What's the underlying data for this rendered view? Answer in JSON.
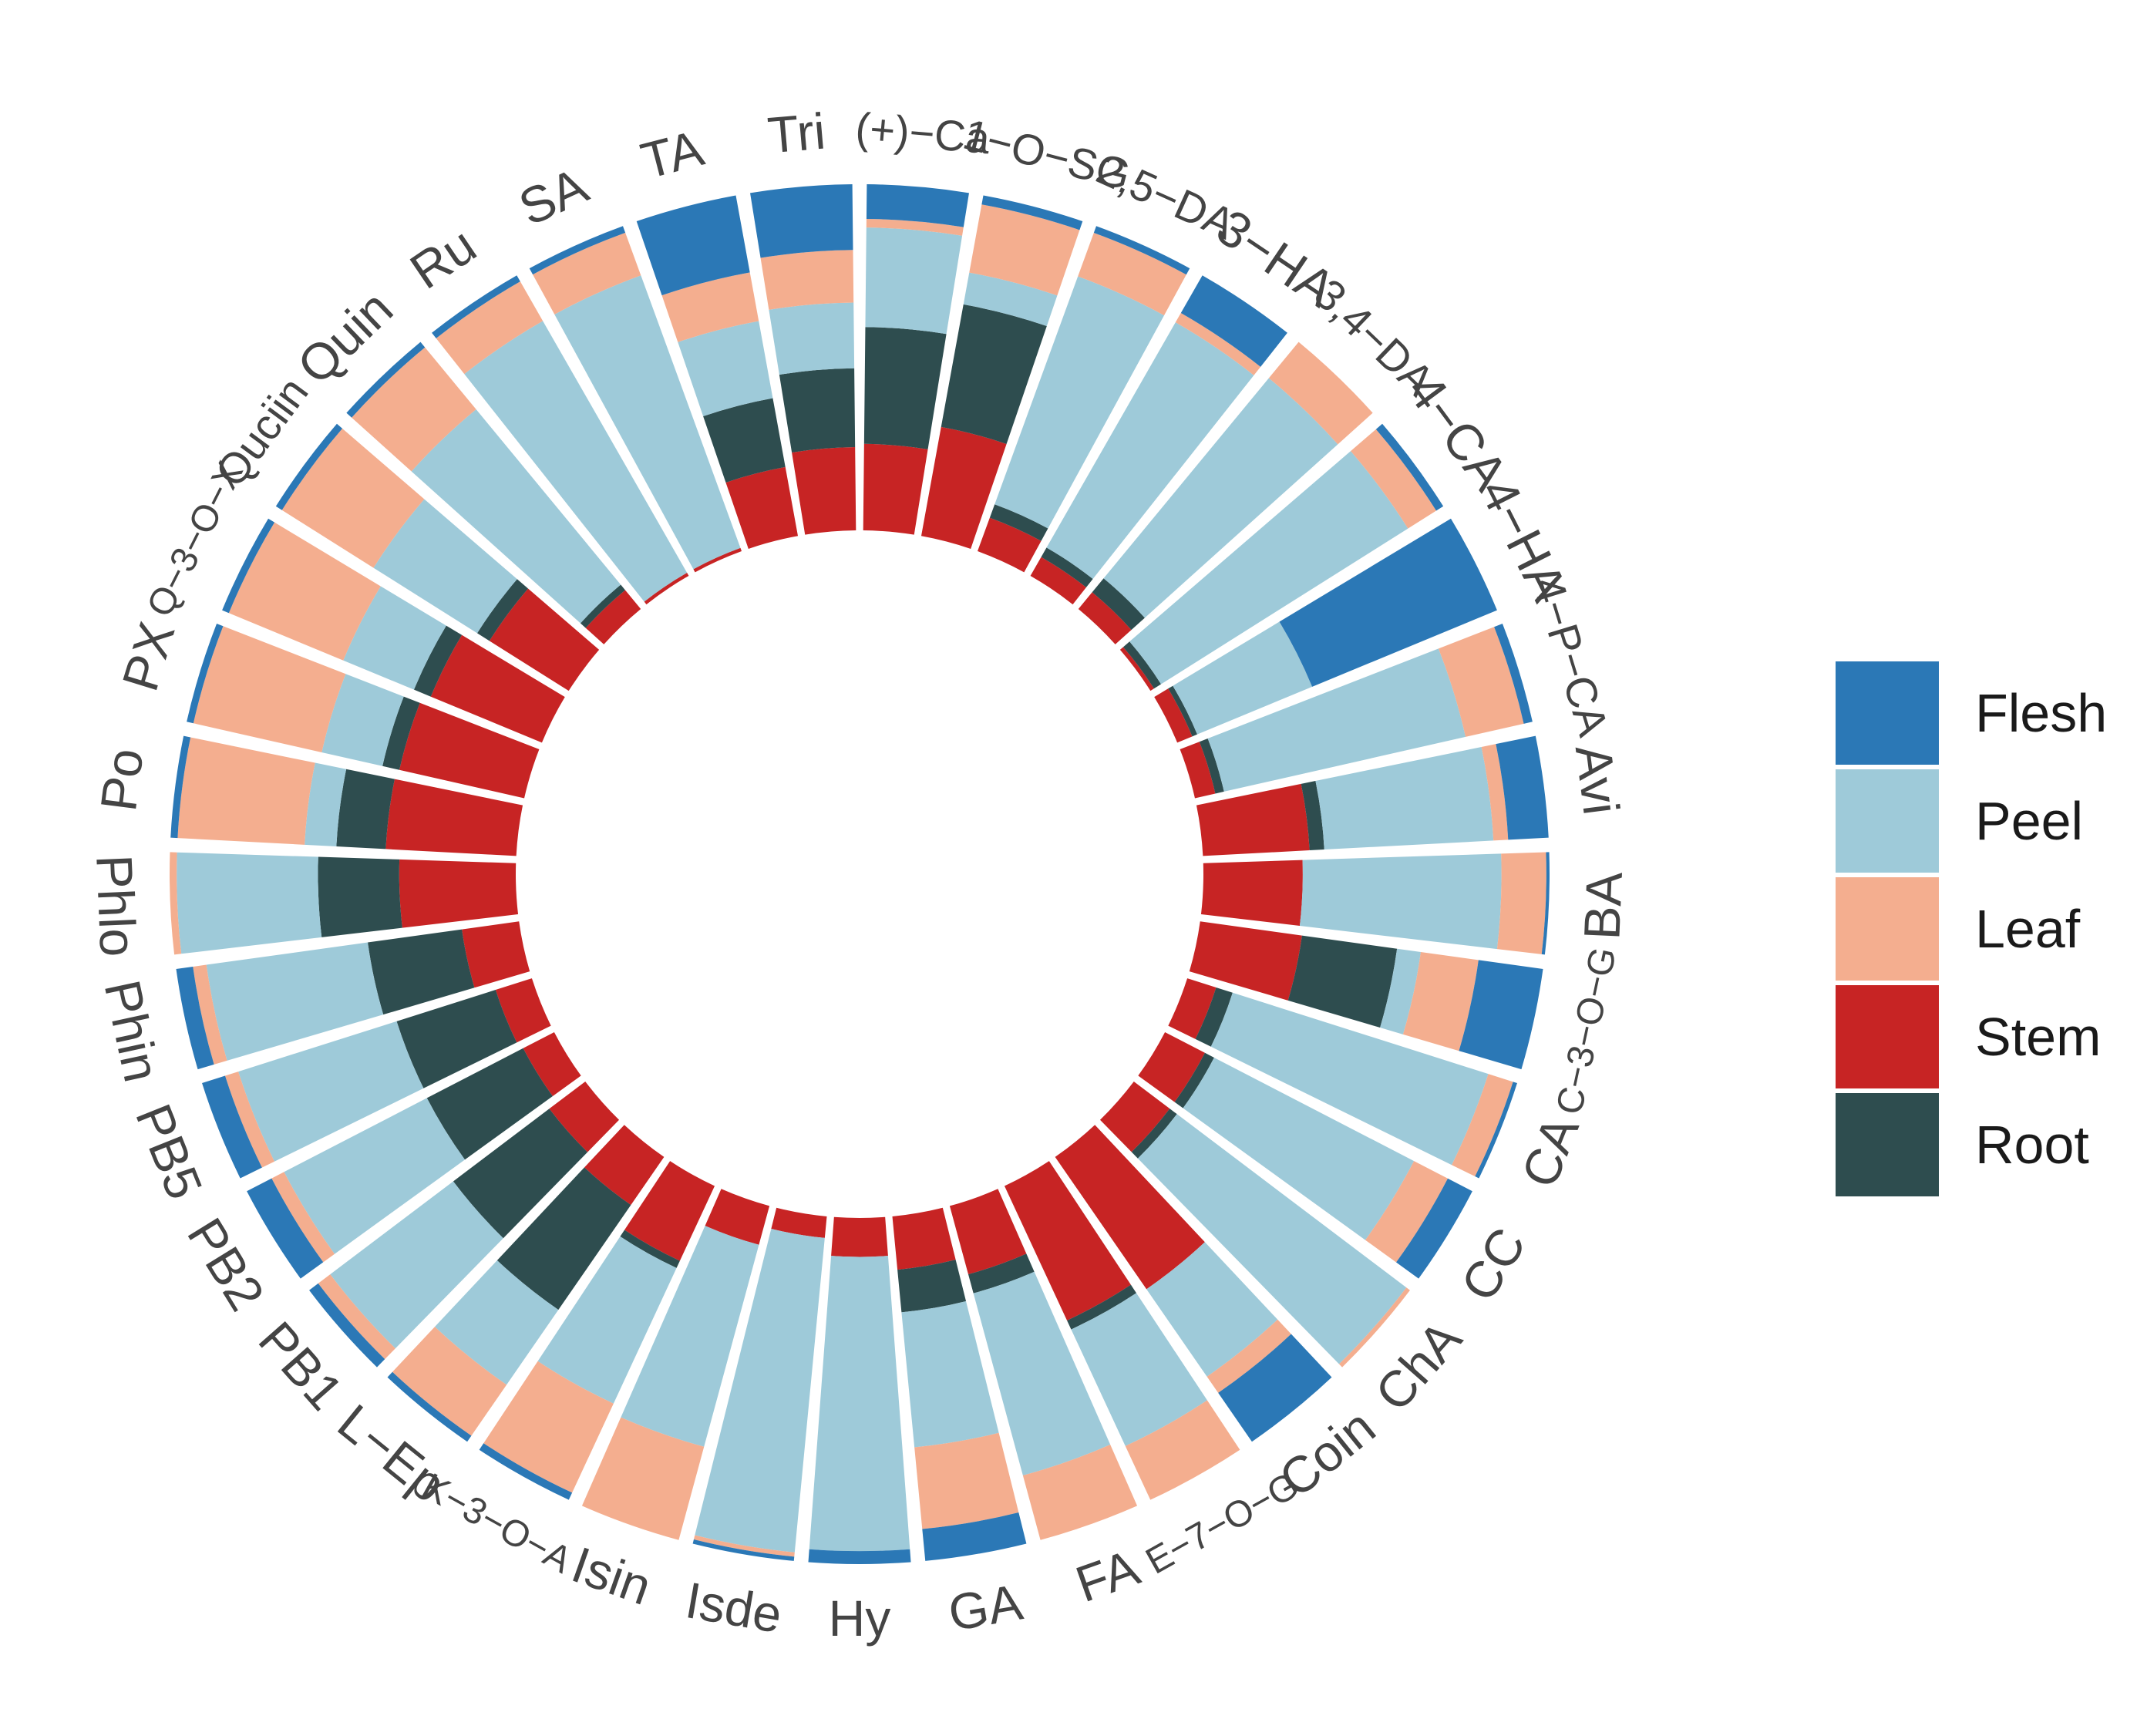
{
  "chart_data": {
    "type": "stacked-circular-bar",
    "title": "",
    "layers_inner_to_outer": [
      "Stem",
      "Root",
      "Peel",
      "Leaf",
      "Flesh"
    ],
    "legend": [
      {
        "name": "Flesh",
        "color": "#2b78b6"
      },
      {
        "name": "Peel",
        "color": "#9ecad9"
      },
      {
        "name": "Leaf",
        "color": "#f4ae8f"
      },
      {
        "name": "Stem",
        "color": "#c72424"
      },
      {
        "name": "Root",
        "color": "#2e4d4f"
      }
    ],
    "legend_position": "right",
    "categories": [
      "(+)−Ca",
      "1−O−SG",
      "2,5−DA",
      "3−HA",
      "3,4−DA",
      "4−CA",
      "4−HA",
      "4−P−CA",
      "Avi",
      "BA",
      "C−3−O−G",
      "CA",
      "CC",
      "ChA",
      "Coin",
      "E−7−O−G",
      "FA",
      "GA",
      "Hy",
      "Isde",
      "Isin",
      "K−3−O−A",
      "L−Ep",
      "PB1",
      "PB2",
      "PB5",
      "Phin",
      "Phlo",
      "Po",
      "PX",
      "Q−3−O−X",
      "Quciin",
      "Quin",
      "Ru",
      "SA",
      "TA",
      "Tri"
    ],
    "series": [
      {
        "name": "Stem",
        "values": [
          0.2,
          0.24,
          0.1,
          0.06,
          0.06,
          0.01,
          0.03,
          0.07,
          0.29,
          0.31,
          0.3,
          0.07,
          0.13,
          0.1,
          0.65,
          0.15,
          0.18,
          0.15,
          0.09,
          0.05,
          0.1,
          0.21,
          0.16,
          0.12,
          0.1,
          0.11,
          0.17,
          0.33,
          0.37,
          0.37,
          0.33,
          0.26,
          0.07,
          0.01,
          0.01,
          0.17,
          0.19
        ]
      },
      {
        "name": "Root",
        "values": [
          0.27,
          0.27,
          0.04,
          0.03,
          0.05,
          0.02,
          0.01,
          0.03,
          0.04,
          0.0,
          0.28,
          0.04,
          0.03,
          0.02,
          0.0,
          0.01,
          0.05,
          0.12,
          0.0,
          0.0,
          0.0,
          0.02,
          0.35,
          0.32,
          0.31,
          0.3,
          0.28,
          0.23,
          0.14,
          0.05,
          0.05,
          0.04,
          0.02,
          0.0,
          0.0,
          0.17,
          0.18
        ]
      },
      {
        "name": "Peel",
        "values": [
          0.23,
          0.07,
          0.68,
          0.72,
          0.72,
          0.7,
          0.23,
          0.83,
          0.46,
          0.62,
          0.07,
          0.62,
          0.65,
          0.64,
          0.43,
          0.13,
          0.48,
          0.38,
          0.68,
          0.73,
          0.52,
          0.38,
          0.25,
          0.41,
          0.46,
          0.48,
          0.48,
          0.4,
          0.09,
          0.18,
          0.21,
          0.34,
          0.65,
          0.83,
          0.83,
          0.19,
          0.15
        ]
      },
      {
        "name": "Leaf",
        "values": [
          0.02,
          0.15,
          0.13,
          0.03,
          0.13,
          0.08,
          0.0,
          0.2,
          0.04,
          0.14,
          0.17,
          0.06,
          0.11,
          0.01,
          0.08,
          0.06,
          0.17,
          0.23,
          0.0,
          0.01,
          0.24,
          0.25,
          0.17,
          0.04,
          0.04,
          0.04,
          0.04,
          0.02,
          0.36,
          0.38,
          0.34,
          0.3,
          0.23,
          0.13,
          0.13,
          0.12,
          0.12
        ]
      },
      {
        "name": "Flesh",
        "values": [
          0.08,
          0.02,
          0.02,
          0.12,
          0.0,
          0.02,
          0.37,
          0.03,
          0.11,
          0.01,
          0.19,
          0.01,
          0.08,
          0.0,
          0.24,
          0.0,
          0.0,
          0.09,
          0.03,
          0.01,
          0.0,
          0.02,
          0.02,
          0.03,
          0.08,
          0.07,
          0.05,
          0.0,
          0.02,
          0.02,
          0.02,
          0.02,
          0.02,
          0.02,
          0.02,
          0.19,
          0.15
        ]
      }
    ]
  }
}
